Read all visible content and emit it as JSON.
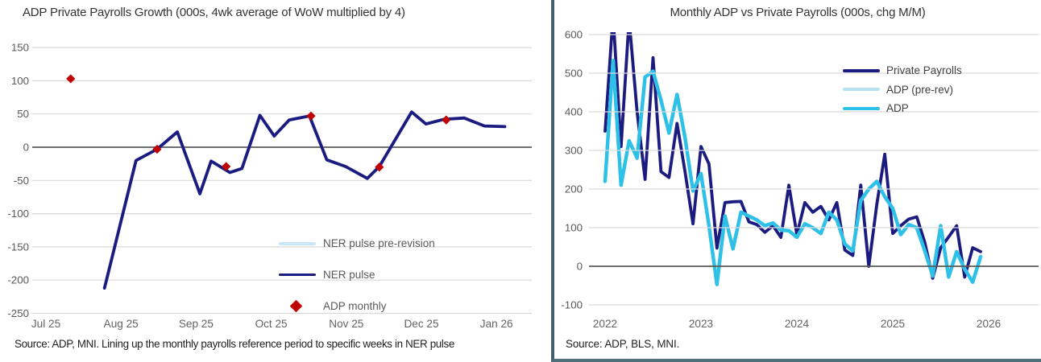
{
  "page": {
    "background": "#ffffff",
    "divider_color": "#42616d",
    "bottom_bar_color": "#4e6e7c"
  },
  "chart_data": [
    {
      "type": "line",
      "title": "ADP Private Payrolls Growth (000s, 4wk average of WoW multiplied by 4)",
      "source_note": "Source: ADP, MNI. Lining up the monthly payrolls reference period to specific weeks in NER pulse",
      "ylim": [
        -250,
        150
      ],
      "y_ticks": [
        150,
        100,
        50,
        0,
        -50,
        -100,
        -150,
        -200,
        -250
      ],
      "x_tick_labels": [
        "Jul 25",
        "Aug 25",
        "Sep 25",
        "Oct 25",
        "Nov 25",
        "Dec 25",
        "Jan 26"
      ],
      "x_unit": "months after Jul 25 tick",
      "grid": true,
      "legend_position": "inside-lower-right",
      "axis_colors": {
        "gridline": "#d9d9d9",
        "zero_line": "#595959",
        "tick_text": "#595959"
      },
      "series": [
        {
          "name": "NER pulse pre-revision",
          "type": "line",
          "color": "#c6e8f7",
          "width": 4,
          "x": [
            0.78,
            1.2,
            1.48,
            1.75,
            2.05,
            2.2,
            2.45,
            2.61,
            2.85,
            3.04,
            3.24,
            3.51,
            3.74,
            3.99,
            4.28,
            4.44,
            4.87,
            5.06,
            5.3,
            5.57,
            5.84,
            6.11
          ],
          "values": [
            -212,
            -20,
            -3,
            23,
            -70,
            -21,
            -38,
            -32,
            48,
            17,
            41,
            47,
            -19,
            -29,
            -47,
            -29,
            53,
            35,
            42,
            44,
            32,
            31
          ]
        },
        {
          "name": "NER pulse",
          "type": "line",
          "color": "#1c1c80",
          "width": 3.8,
          "x": [
            0.78,
            1.2,
            1.48,
            1.75,
            2.05,
            2.2,
            2.45,
            2.61,
            2.85,
            3.04,
            3.24,
            3.51,
            3.74,
            3.99,
            4.28,
            4.44,
            4.87,
            5.06,
            5.3,
            5.57,
            5.84,
            6.11
          ],
          "values": [
            -212,
            -20,
            -3,
            23,
            -70,
            -21,
            -38,
            -32,
            48,
            17,
            41,
            47,
            -19,
            -29,
            -47,
            -29,
            53,
            35,
            42,
            44,
            32,
            31
          ]
        },
        {
          "name": "ADP monthly",
          "type": "diamond",
          "color": "#c00000",
          "x": [
            0.33,
            1.48,
            2.4,
            3.53,
            4.44,
            5.33
          ],
          "values": [
            103,
            -3,
            -29,
            47,
            -30,
            41
          ]
        }
      ]
    },
    {
      "type": "line",
      "title": "Monthly ADP vs Private Payrolls (000s, chg M/M)",
      "source_note": "Source: ADP, BLS, MNI.",
      "ylim": [
        -100,
        600
      ],
      "y_ticks": [
        600,
        500,
        400,
        300,
        200,
        100,
        0,
        -100
      ],
      "x_tick_labels": [
        "2022",
        "2023",
        "2024",
        "2025",
        "2026"
      ],
      "x_unit": "months after Jan 2022 tick",
      "grid": true,
      "legend_position": "inside-upper-right",
      "axis_colors": {
        "gridline": "#d9d9d9",
        "zero_line": "#595959",
        "tick_text": "#595959"
      },
      "series": [
        {
          "name": "Private Payrolls",
          "type": "line",
          "color": "#1c1c80",
          "width": 3.8,
          "x": [
            0,
            1,
            2,
            3,
            4,
            5,
            6,
            7,
            8,
            9,
            10,
            11,
            12,
            13,
            14,
            15,
            16,
            17,
            18,
            19,
            20,
            21,
            22,
            23,
            24,
            25,
            26,
            27,
            28,
            29,
            30,
            31,
            32,
            33,
            34,
            35,
            36,
            37,
            38,
            39,
            40,
            41,
            42,
            43,
            44,
            45,
            46,
            47
          ],
          "values": [
            350,
            650,
            310,
            640,
            400,
            225,
            540,
            245,
            230,
            370,
            245,
            110,
            310,
            265,
            47,
            165,
            167,
            168,
            115,
            108,
            88,
            105,
            75,
            210,
            82,
            165,
            140,
            155,
            120,
            165,
            42,
            28,
            210,
            0,
            160,
            290,
            85,
            105,
            122,
            128,
            62,
            -31,
            48,
            76,
            105,
            -28,
            48,
            38
          ]
        },
        {
          "name": "ADP (pre-rev)",
          "type": "line",
          "color": "#b5e3f4",
          "width": 4.4,
          "x": [
            0,
            1,
            2,
            3,
            4,
            5,
            6,
            7,
            8,
            9,
            10,
            11,
            12,
            13,
            14,
            15,
            16,
            17,
            18,
            19,
            20,
            21,
            22,
            23,
            24,
            25,
            26,
            27,
            28,
            29,
            30,
            31,
            32,
            33,
            34,
            35,
            36,
            37,
            38,
            39,
            40,
            41,
            42,
            43,
            44,
            45,
            46,
            47
          ],
          "values": [
            220,
            533,
            210,
            325,
            280,
            490,
            505,
            430,
            345,
            445,
            333,
            195,
            240,
            105,
            -47,
            130,
            45,
            140,
            130,
            120,
            105,
            112,
            94,
            92,
            75,
            110,
            100,
            85,
            140,
            120,
            58,
            40,
            170,
            200,
            220,
            180,
            150,
            82,
            108,
            100,
            40,
            -25,
            105,
            -28,
            38,
            -7,
            -41,
            25
          ]
        },
        {
          "name": "ADP",
          "type": "line",
          "color": "#2ec1e7",
          "width": 4.4,
          "x": [
            0,
            1,
            2,
            3,
            4,
            5,
            6,
            7,
            8,
            9,
            10,
            11,
            12,
            13,
            14,
            15,
            16,
            17,
            18,
            19,
            20,
            21,
            22,
            23,
            24,
            25,
            26,
            27,
            28,
            29,
            30,
            31,
            32,
            33,
            34,
            35,
            36,
            37,
            38,
            39,
            40,
            41,
            42,
            43,
            44,
            45,
            46,
            47
          ],
          "values": [
            220,
            533,
            210,
            325,
            280,
            490,
            505,
            430,
            345,
            445,
            333,
            195,
            240,
            105,
            -47,
            130,
            45,
            140,
            130,
            120,
            105,
            112,
            94,
            92,
            75,
            110,
            100,
            85,
            140,
            120,
            58,
            40,
            170,
            200,
            220,
            180,
            150,
            82,
            108,
            100,
            40,
            -25,
            105,
            -28,
            38,
            -7,
            -41,
            25
          ]
        }
      ]
    }
  ]
}
